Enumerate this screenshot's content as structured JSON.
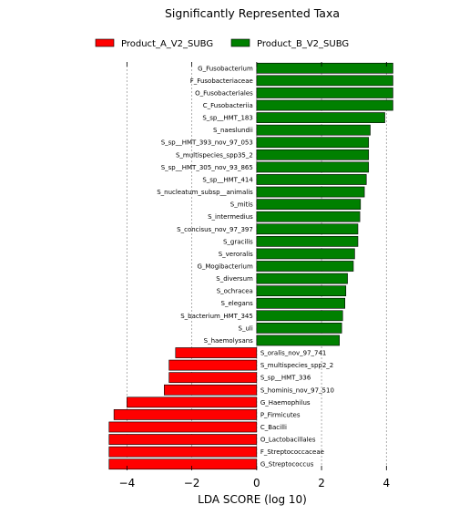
{
  "chart_data": {
    "type": "bar",
    "orientation": "horizontal",
    "title": "Significantly Represented Taxa",
    "xlabel": "LDA SCORE (log 10)",
    "xlim": [
      -4.6,
      4.3
    ],
    "xticks": [
      -4,
      -2,
      0,
      2,
      4
    ],
    "xtick_labels": [
      "−4",
      "−2",
      "0",
      "2",
      "4"
    ],
    "grid": "vertical dashed",
    "legend_placement": "top",
    "series": [
      {
        "name": "Product_A_V2_SUBG",
        "color": "#ff0000"
      },
      {
        "name": "Product_B_V2_SUBG",
        "color": "#008000"
      }
    ],
    "bars": [
      {
        "label": "G_Fusobacterium",
        "value": 4.2,
        "group": "Product_B_V2_SUBG"
      },
      {
        "label": "F_Fusobacteriaceae",
        "value": 4.2,
        "group": "Product_B_V2_SUBG"
      },
      {
        "label": "O_Fusobacteriales",
        "value": 4.2,
        "group": "Product_B_V2_SUBG"
      },
      {
        "label": "C_Fusobacteriia",
        "value": 4.2,
        "group": "Product_B_V2_SUBG"
      },
      {
        "label": "S_sp__HMT_183",
        "value": 3.95,
        "group": "Product_B_V2_SUBG"
      },
      {
        "label": "S_naeslundii",
        "value": 3.5,
        "group": "Product_B_V2_SUBG"
      },
      {
        "label": "S_sp__HMT_393_nov_97_053",
        "value": 3.45,
        "group": "Product_B_V2_SUBG"
      },
      {
        "label": "S_multispecies_spp35_2",
        "value": 3.45,
        "group": "Product_B_V2_SUBG"
      },
      {
        "label": "S_sp__HMT_305_nov_93_865",
        "value": 3.45,
        "group": "Product_B_V2_SUBG"
      },
      {
        "label": "S_sp__HMT_414",
        "value": 3.38,
        "group": "Product_B_V2_SUBG"
      },
      {
        "label": "S_nucleatum_subsp__animalis",
        "value": 3.32,
        "group": "Product_B_V2_SUBG"
      },
      {
        "label": "S_mitis",
        "value": 3.2,
        "group": "Product_B_V2_SUBG"
      },
      {
        "label": "S_intermedius",
        "value": 3.18,
        "group": "Product_B_V2_SUBG"
      },
      {
        "label": "S_concisus_nov_97_397",
        "value": 3.12,
        "group": "Product_B_V2_SUBG"
      },
      {
        "label": "S_gracilis",
        "value": 3.12,
        "group": "Product_B_V2_SUBG"
      },
      {
        "label": "S_veroralis",
        "value": 3.02,
        "group": "Product_B_V2_SUBG"
      },
      {
        "label": "G_Mogibacterium",
        "value": 2.98,
        "group": "Product_B_V2_SUBG"
      },
      {
        "label": "S_diversum",
        "value": 2.8,
        "group": "Product_B_V2_SUBG"
      },
      {
        "label": "S_ochracea",
        "value": 2.75,
        "group": "Product_B_V2_SUBG"
      },
      {
        "label": "S_elegans",
        "value": 2.72,
        "group": "Product_B_V2_SUBG"
      },
      {
        "label": "S_bacterium_HMT_345",
        "value": 2.65,
        "group": "Product_B_V2_SUBG"
      },
      {
        "label": "S_uli",
        "value": 2.62,
        "group": "Product_B_V2_SUBG"
      },
      {
        "label": "S_haemolysans",
        "value": 2.55,
        "group": "Product_B_V2_SUBG"
      },
      {
        "label": "S_oralis_nov_97_741",
        "value": -2.5,
        "group": "Product_A_V2_SUBG"
      },
      {
        "label": "S_multispecies_spp2_2",
        "value": -2.7,
        "group": "Product_A_V2_SUBG"
      },
      {
        "label": "S_sp__HMT_336",
        "value": -2.7,
        "group": "Product_A_V2_SUBG"
      },
      {
        "label": "S_hominis_nov_97_510",
        "value": -2.85,
        "group": "Product_A_V2_SUBG"
      },
      {
        "label": "G_Haemophilus",
        "value": -4.0,
        "group": "Product_A_V2_SUBG"
      },
      {
        "label": "P_Firmicutes",
        "value": -4.4,
        "group": "Product_A_V2_SUBG"
      },
      {
        "label": "C_Bacilli",
        "value": -4.55,
        "group": "Product_A_V2_SUBG"
      },
      {
        "label": "O_Lactobacillales",
        "value": -4.55,
        "group": "Product_A_V2_SUBG"
      },
      {
        "label": "F_Streptococcaceae",
        "value": -4.55,
        "group": "Product_A_V2_SUBG"
      },
      {
        "label": "G_Streptococcus",
        "value": -4.55,
        "group": "Product_A_V2_SUBG"
      }
    ]
  }
}
